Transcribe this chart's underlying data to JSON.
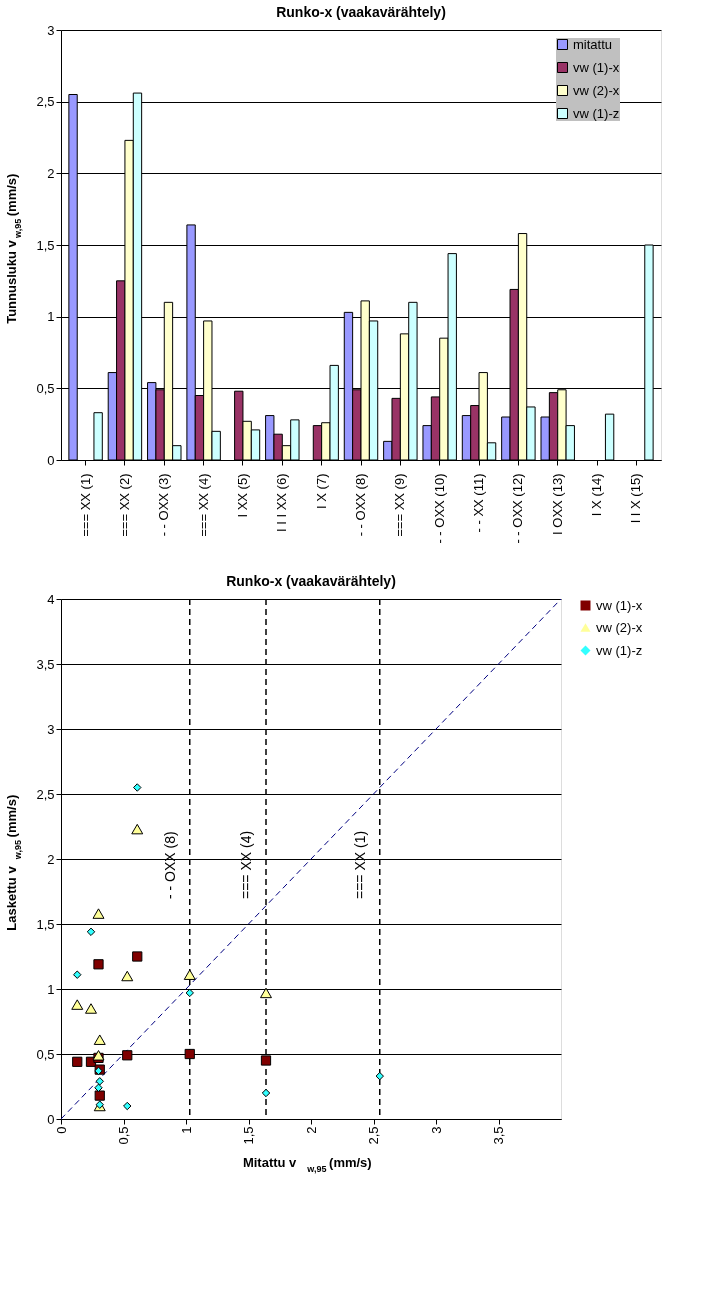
{
  "chart_data": [
    {
      "type": "bar",
      "title": "Runko-x (vaakavärähtely)",
      "ylabel": "Tunnusluku v$_{w,95}$ (mm/s)",
      "categories": [
        "=== XX (1)",
        "=== XX (2)",
        "- - OXX (3)",
        "=== XX (4)",
        "I XX (5)",
        "I I I XX (6)",
        "I X (7)",
        "- - OXX (8)",
        "=== XX (9)",
        "- - OXX (10)",
        "- - XX (11)",
        "- - OXX (12)",
        "I OXX (13)",
        "I X (14)",
        "I I X (15)"
      ],
      "series": [
        {
          "name": "mitattu",
          "color": "#9999ff",
          "values": [
            2.55,
            0.61,
            0.54,
            1.64,
            null,
            0.31,
            null,
            1.03,
            0.13,
            0.24,
            0.31,
            0.3,
            0.3,
            null,
            null
          ]
        },
        {
          "name": "vw (1)-x",
          "color": "#993366",
          "values": [
            null,
            1.25,
            0.49,
            0.45,
            0.48,
            0.18,
            0.24,
            0.49,
            0.43,
            0.44,
            0.38,
            1.19,
            0.47,
            null,
            null
          ]
        },
        {
          "name": "vw (2)-x",
          "color": "#ffffcc",
          "values": [
            null,
            2.23,
            1.1,
            0.97,
            0.27,
            0.1,
            0.26,
            1.11,
            0.88,
            0.85,
            0.61,
            1.58,
            0.49,
            null,
            null
          ]
        },
        {
          "name": "vw (1)-z",
          "color": "#ccffff",
          "values": [
            0.33,
            2.56,
            0.1,
            0.2,
            0.21,
            0.28,
            0.66,
            0.97,
            1.1,
            1.44,
            0.12,
            0.37,
            0.24,
            0.32,
            1.5
          ]
        }
      ],
      "ylim": [
        0,
        3
      ],
      "yticks": [
        0,
        {
          "value": 0.5,
          "label": "0,5"
        },
        1,
        {
          "value": 1.5,
          "label": "1,5"
        },
        2,
        {
          "value": 2.5,
          "label": "2,5"
        },
        3
      ],
      "grid": "y",
      "legend": "top right"
    },
    {
      "type": "scatter",
      "title": "Runko-x (vaakavärähtely)",
      "xlabel": "Mitattu v$_{w,95}$ (mm/s)",
      "ylabel": "Laskettu v$_{w,95}$ (mm/s)",
      "series": [
        {
          "name": "vw (1)-x",
          "color": "#800000",
          "marker": "square",
          "x": [
            0.61,
            0.53,
            1.64,
            0.31,
            1.03,
            0.13,
            0.24,
            0.31,
            0.3,
            0.3
          ],
          "values": [
            1.25,
            0.49,
            0.45,
            0.18,
            0.5,
            0.44,
            0.44,
            0.38,
            1.19,
            0.47
          ]
        },
        {
          "name": "vw (2)-x",
          "color": "#ffff99",
          "marker": "triangle",
          "x": [
            0.61,
            0.53,
            1.64,
            0.31,
            1.03,
            0.13,
            0.24,
            0.31,
            0.3,
            0.3
          ],
          "values": [
            2.23,
            1.1,
            0.97,
            0.1,
            1.11,
            0.88,
            0.85,
            0.61,
            1.58,
            0.49
          ]
        },
        {
          "name": "vw (1)-z",
          "color": "#33ffff",
          "marker": "diamond",
          "x": [
            2.55,
            0.61,
            0.53,
            1.64,
            0.31,
            1.03,
            0.13,
            0.24,
            0.31,
            0.3,
            0.3
          ],
          "values": [
            0.33,
            2.55,
            0.1,
            0.2,
            0.29,
            0.97,
            1.11,
            1.44,
            0.11,
            0.37,
            0.24
          ]
        },
        {
          "type": "line",
          "color": "#000080",
          "line_style": "dashed",
          "x": [
            0,
            4
          ],
          "values": [
            0,
            4
          ]
        }
      ],
      "ref_lines": [
        {
          "axis": "x",
          "value": 1.03,
          "label": "- - OXX (8)",
          "color": "#000000",
          "line_style": "dashed"
        },
        {
          "axis": "x",
          "value": 1.64,
          "label": "=== XX (4)",
          "color": "#000000",
          "line_style": "dashed"
        },
        {
          "axis": "x",
          "value": 2.55,
          "label": "=== XX (1)",
          "color": "#000000",
          "line_style": "dashed"
        }
      ],
      "xlim": [
        0,
        4
      ],
      "xticks": [
        0,
        {
          "value": 0.5,
          "label": "0,5"
        },
        1,
        {
          "value": 1.5,
          "label": "1,5"
        },
        2,
        {
          "value": 2.5,
          "label": "2,5"
        },
        3,
        {
          "value": 3.5,
          "label": "3,5"
        }
      ],
      "ylim": [
        0,
        4
      ],
      "yticks": [
        0,
        {
          "value": 0.5,
          "label": "0,5"
        },
        1,
        {
          "value": 1.5,
          "label": "1,5"
        },
        2,
        {
          "value": 2.5,
          "label": "2,5"
        },
        3,
        {
          "value": 3.5,
          "label": "3,5"
        },
        4
      ],
      "grid": "y",
      "legend": "right"
    }
  ]
}
